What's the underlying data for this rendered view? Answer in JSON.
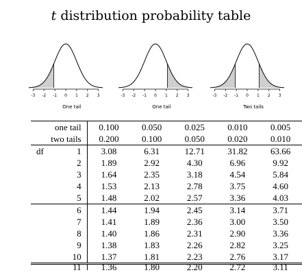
{
  "title": {
    "var": "t",
    "rest": " distribution probability table"
  },
  "curves": [
    {
      "caption": "One tail",
      "shade": "left"
    },
    {
      "caption": "One tail",
      "shade": "right"
    },
    {
      "caption": "Two tails",
      "shade": "both"
    }
  ],
  "axis_ticks": [
    "-3",
    "-2",
    "-1",
    "0",
    "1",
    "2",
    "3"
  ],
  "table": {
    "one_tail_label": "one tail",
    "two_tails_label": "two tails",
    "one_tail": [
      "0.100",
      "0.050",
      "0.025",
      "0.010",
      "0.005"
    ],
    "two_tails": [
      "0.200",
      "0.100",
      "0.050",
      "0.020",
      "0.010"
    ],
    "df_label": "df",
    "rows": [
      {
        "df": "1",
        "values": [
          "3.08",
          "6.31",
          "12.71",
          "31.82",
          "63.66"
        ]
      },
      {
        "df": "2",
        "values": [
          "1.89",
          "2.92",
          "4.30",
          "6.96",
          "9.92"
        ]
      },
      {
        "df": "3",
        "values": [
          "1.64",
          "2.35",
          "3.18",
          "4.54",
          "5.84"
        ]
      },
      {
        "df": "4",
        "values": [
          "1.53",
          "2.13",
          "2.78",
          "3.75",
          "4.60"
        ]
      },
      {
        "df": "5",
        "values": [
          "1.48",
          "2.02",
          "2.57",
          "3.36",
          "4.03"
        ]
      },
      {
        "df": "6",
        "values": [
          "1.44",
          "1.94",
          "2.45",
          "3.14",
          "3.71"
        ]
      },
      {
        "df": "7",
        "values": [
          "1.41",
          "1.89",
          "2.36",
          "3.00",
          "3.50"
        ]
      },
      {
        "df": "8",
        "values": [
          "1.40",
          "1.86",
          "2.31",
          "2.90",
          "3.36"
        ]
      },
      {
        "df": "9",
        "values": [
          "1.38",
          "1.83",
          "2.26",
          "2.82",
          "3.25"
        ]
      },
      {
        "df": "10",
        "values": [
          "1.37",
          "1.81",
          "2.23",
          "2.76",
          "3.17"
        ]
      },
      {
        "df": "11",
        "values": [
          "1.36",
          "1.80",
          "2.20",
          "2.72",
          "3.11"
        ]
      }
    ]
  }
}
